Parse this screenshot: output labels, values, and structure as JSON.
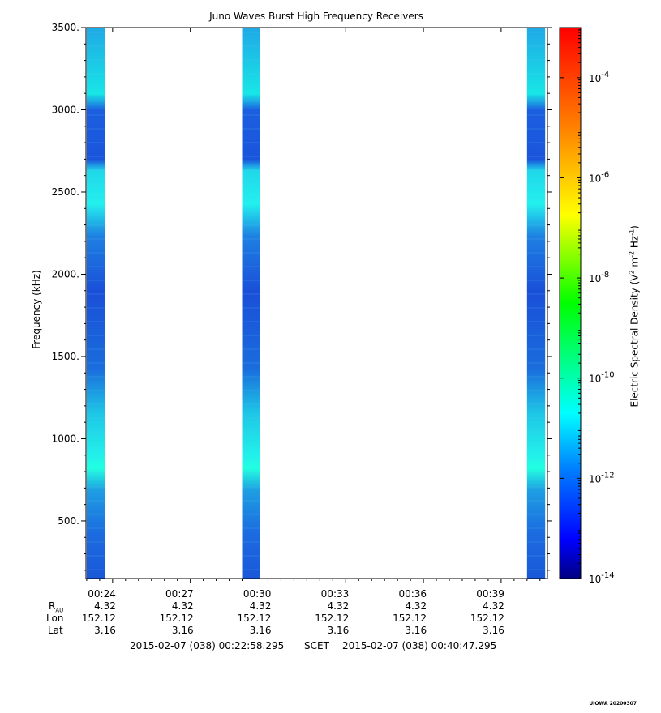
{
  "chart_data": {
    "type": "heatmap",
    "title": "Juno Waves Burst High Frequency Receivers",
    "ylabel": "Frequency (kHz)",
    "yticks": [
      {
        "value": 500,
        "label": "500."
      },
      {
        "value": 1000,
        "label": "1000."
      },
      {
        "value": 1500,
        "label": "1500."
      },
      {
        "value": 2000,
        "label": "2000."
      },
      {
        "value": 2500,
        "label": "2500."
      },
      {
        "value": 3000,
        "label": "3000."
      },
      {
        "value": 3500,
        "label": "3500."
      }
    ],
    "ylim": [
      150,
      3500
    ],
    "xlim": [
      "00:22:58.295",
      "00:40:47.295"
    ],
    "xticks": [
      "00:24",
      "00:27",
      "00:30",
      "00:33",
      "00:36",
      "00:39"
    ],
    "bursts": [
      {
        "start": "00:23:00",
        "end": "00:23:42"
      },
      {
        "start": "00:29:00",
        "end": "00:29:42"
      },
      {
        "start": "00:40:00",
        "end": "00:40:42"
      }
    ],
    "colorbar": {
      "label_main": "Electric Spectral Density (V",
      "label_sup1": "2",
      "label_mid": " m",
      "label_sup2": "-2",
      "label_mid2": " Hz",
      "label_sup3": "-1",
      "label_end": ")",
      "scale": "log",
      "range_exp": [
        -14,
        -3
      ],
      "ticks": [
        {
          "exp": -14,
          "base": "10",
          "sup": "-14"
        },
        {
          "exp": -12,
          "base": "10",
          "sup": "-12"
        },
        {
          "exp": -10,
          "base": "10",
          "sup": "-10"
        },
        {
          "exp": -8,
          "base": "10",
          "sup": "-8"
        },
        {
          "exp": -6,
          "base": "10",
          "sup": "-6"
        },
        {
          "exp": -4,
          "base": "10",
          "sup": "-4"
        }
      ],
      "colors": [
        "#000080",
        "#0000ff",
        "#0080ff",
        "#00ffff",
        "#00ff00",
        "#ffff00",
        "#ff8000",
        "#ff0000"
      ]
    },
    "ephemeris": {
      "labels": {
        "r": "R",
        "r_sub": "AU",
        "lon": "Lon",
        "lat": "Lat"
      },
      "r": [
        "4.32",
        "4.32",
        "4.32",
        "4.32",
        "4.32",
        "4.32"
      ],
      "lon": [
        "152.12",
        "152.12",
        "152.12",
        "152.12",
        "152.12",
        "152.12"
      ],
      "lat": [
        "3.16",
        "3.16",
        "3.16",
        "3.16",
        "3.16",
        "3.16"
      ]
    },
    "footer": {
      "start": "2015-02-07 (038) 00:22:58.295",
      "mid": "SCET",
      "end": "2015-02-07 (038) 00:40:47.295"
    },
    "stamp": "UIOWA 20200307"
  }
}
